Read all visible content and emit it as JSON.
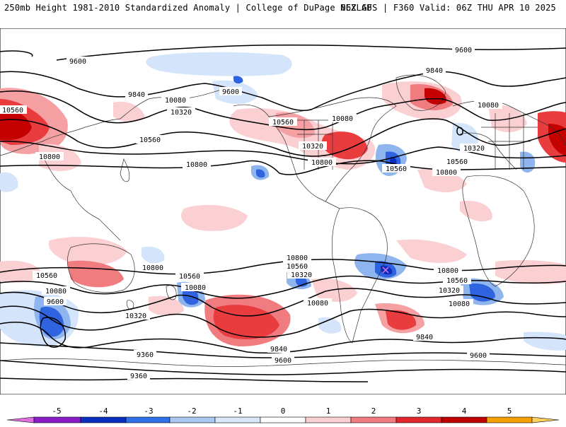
{
  "header": {
    "left": "250mb Height 1981-2010 Standardized Anomaly | College of DuPage NEXLAB",
    "right": "06Z GFS | F360 Valid: 06Z THU APR 10 2025"
  },
  "map": {
    "contour_labels": [
      "9600",
      "9840",
      "10080",
      "10320",
      "10560",
      "10800",
      "9360"
    ],
    "contour_color": "#000000"
  },
  "colorbar": {
    "tick_labels": [
      "-5",
      "-4",
      "-3",
      "-2",
      "-1",
      "0",
      "1",
      "2",
      "3",
      "4",
      "5"
    ],
    "colors": [
      "#e070e0",
      "#8a1cc8",
      "#0a2fbf",
      "#2f6fe8",
      "#a9c8f2",
      "#dbe8fa",
      "#ffffff",
      "#fbd0d3",
      "#f07c80",
      "#e0272d",
      "#c00000",
      "#f5a000",
      "#ffd060"
    ]
  },
  "anomaly_colors": {
    "pos_light": "#fbd0d3",
    "pos_mid": "#f5a0a3",
    "pos_strong": "#e83c3f",
    "pos_max": "#c40000",
    "neg_light": "#d4e4fa",
    "neg_mid": "#8fb5ee",
    "neg_strong": "#2f63e0",
    "neg_max": "#0a2fbf"
  }
}
